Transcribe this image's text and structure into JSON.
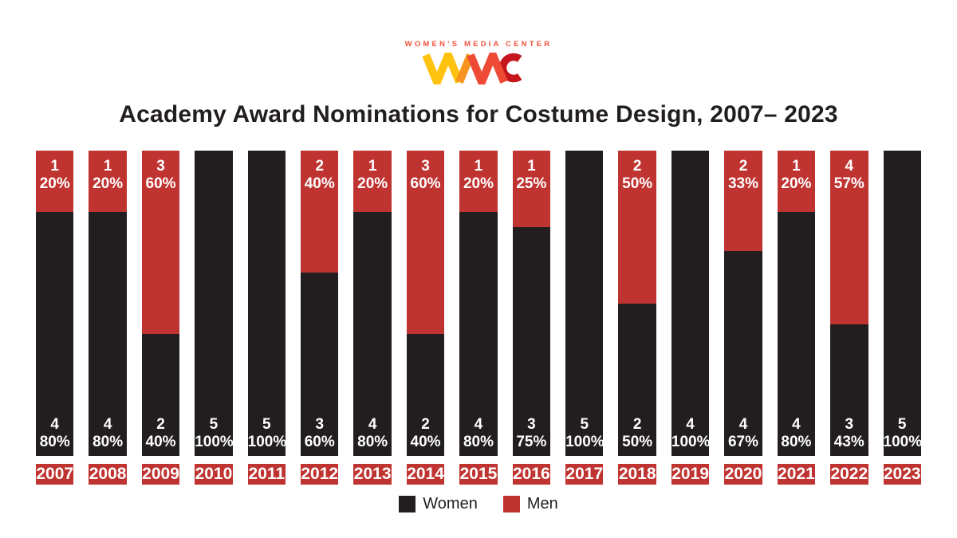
{
  "logo": {
    "tagline": "WOMEN'S MEDIA CENTER",
    "mark_name": "WMC",
    "colors": {
      "yellow": "#FFC20E",
      "orange": "#F7941D",
      "red_orange": "#EF4A35",
      "dark_red": "#C4161C",
      "tagline": "#F1543C"
    }
  },
  "title": "Academy Award Nominations for Costume Design, 2007– 2023",
  "colors": {
    "women_black": "#221E1F",
    "men_red": "#BF3431",
    "year_box_red": "#BF3431",
    "label_white": "#FFFFFF"
  },
  "legend": {
    "items": [
      {
        "label": "Women",
        "color": "#221E1F"
      },
      {
        "label": "Men",
        "color": "#BF3431"
      }
    ]
  },
  "chart_data": {
    "type": "bar",
    "stacked": true,
    "orientation": "vertical",
    "title": "Academy Award Nominations for Costume Design, 2007– 2023",
    "categories": [
      "2007",
      "2008",
      "2009",
      "2010",
      "2011",
      "2012",
      "2013",
      "2014",
      "2015",
      "2016",
      "2017",
      "2018",
      "2019",
      "2020",
      "2021",
      "2022",
      "2023"
    ],
    "series": [
      {
        "name": "Women",
        "color": "#221E1F",
        "counts": [
          4,
          4,
          2,
          5,
          5,
          3,
          4,
          2,
          4,
          3,
          5,
          2,
          4,
          4,
          4,
          3,
          5
        ],
        "percents": [
          80,
          80,
          40,
          100,
          100,
          60,
          80,
          40,
          80,
          75,
          100,
          50,
          100,
          67,
          80,
          43,
          100
        ]
      },
      {
        "name": "Men",
        "color": "#BF3431",
        "counts": [
          1,
          1,
          3,
          0,
          0,
          2,
          1,
          3,
          1,
          1,
          0,
          2,
          0,
          2,
          1,
          4,
          0
        ],
        "percents": [
          20,
          20,
          60,
          0,
          0,
          40,
          20,
          60,
          20,
          25,
          0,
          50,
          0,
          33,
          20,
          57,
          0
        ]
      }
    ],
    "value_labels": "count and percent shown inside each segment; zero-value segments have no label",
    "legend_position": "bottom",
    "percent_suffix": "%"
  }
}
